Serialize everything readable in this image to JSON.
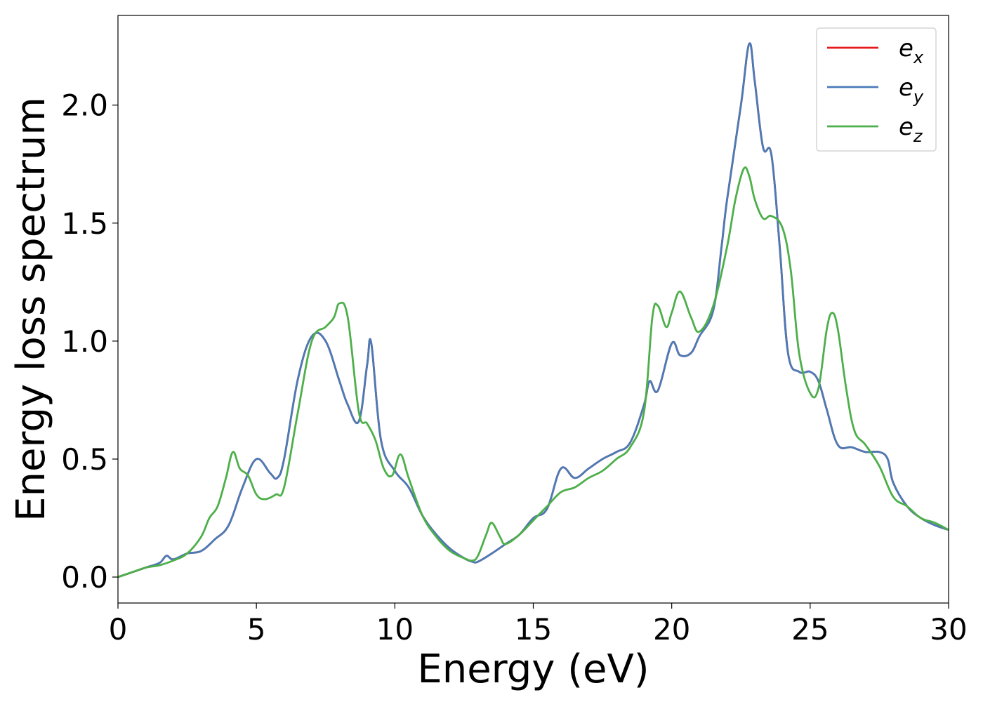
{
  "chart_data": {
    "type": "line",
    "xlabel": "Energy (eV)",
    "ylabel": "Energy loss spectrum",
    "xlim": [
      0,
      30
    ],
    "ylim": [
      -0.11,
      2.38
    ],
    "xticks": [
      0,
      5,
      10,
      15,
      20,
      25,
      30
    ],
    "yticks": [
      0.0,
      0.5,
      1.0,
      1.5,
      2.0
    ],
    "xtick_labels": [
      "0",
      "5",
      "10",
      "15",
      "20",
      "25",
      "30"
    ],
    "ytick_labels": [
      "0.0",
      "0.5",
      "1.0",
      "1.5",
      "2.0"
    ],
    "grid": false,
    "legend_position": "top-right",
    "series": [
      {
        "name": "e_x",
        "label_base": "e",
        "label_sub": "x",
        "color": "#e41a1c",
        "x": [
          0,
          0.5,
          1.0,
          1.5,
          1.75,
          2.0,
          2.5,
          3.0,
          3.5,
          4.0,
          4.5,
          5.0,
          5.5,
          5.75,
          6.0,
          6.5,
          7.0,
          7.5,
          8.0,
          8.3,
          8.7,
          9.0,
          9.15,
          9.5,
          10.0,
          10.5,
          11.0,
          11.5,
          12.0,
          12.5,
          12.8,
          13.0,
          13.5,
          14.0,
          14.5,
          15.0,
          15.5,
          16.0,
          16.5,
          17.0,
          17.5,
          18.0,
          18.5,
          19.0,
          19.2,
          19.5,
          20.0,
          20.3,
          20.7,
          21.0,
          21.5,
          21.8,
          22.0,
          22.5,
          22.8,
          23.0,
          23.3,
          23.6,
          23.9,
          24.2,
          24.6,
          25.0,
          25.3,
          25.6,
          26.0,
          26.5,
          27.0,
          27.5,
          27.8,
          28.0,
          28.5,
          29.0,
          29.5,
          30.0
        ],
        "y": [
          0.0,
          0.02,
          0.04,
          0.06,
          0.09,
          0.075,
          0.1,
          0.11,
          0.16,
          0.22,
          0.38,
          0.5,
          0.44,
          0.42,
          0.5,
          0.84,
          1.02,
          1.0,
          0.83,
          0.73,
          0.66,
          0.9,
          0.99,
          0.58,
          0.45,
          0.38,
          0.26,
          0.18,
          0.12,
          0.08,
          0.065,
          0.065,
          0.1,
          0.14,
          0.18,
          0.25,
          0.29,
          0.46,
          0.42,
          0.46,
          0.5,
          0.53,
          0.57,
          0.73,
          0.83,
          0.79,
          0.99,
          0.94,
          0.95,
          1.02,
          1.13,
          1.4,
          1.6,
          2.0,
          2.26,
          2.1,
          1.82,
          1.79,
          1.4,
          0.95,
          0.87,
          0.87,
          0.83,
          0.71,
          0.56,
          0.55,
          0.53,
          0.53,
          0.5,
          0.4,
          0.3,
          0.25,
          0.22,
          0.2
        ]
      },
      {
        "name": "e_y",
        "label_base": "e",
        "label_sub": "y",
        "color": "#4a7bb7",
        "x": [
          0,
          0.5,
          1.0,
          1.5,
          1.75,
          2.0,
          2.5,
          3.0,
          3.5,
          4.0,
          4.5,
          5.0,
          5.5,
          5.75,
          6.0,
          6.5,
          7.0,
          7.5,
          8.0,
          8.3,
          8.7,
          9.0,
          9.15,
          9.5,
          10.0,
          10.5,
          11.0,
          11.5,
          12.0,
          12.5,
          12.8,
          13.0,
          13.5,
          14.0,
          14.5,
          15.0,
          15.5,
          16.0,
          16.5,
          17.0,
          17.5,
          18.0,
          18.5,
          19.0,
          19.2,
          19.5,
          20.0,
          20.3,
          20.7,
          21.0,
          21.5,
          21.8,
          22.0,
          22.5,
          22.8,
          23.0,
          23.3,
          23.6,
          23.9,
          24.2,
          24.6,
          25.0,
          25.3,
          25.6,
          26.0,
          26.5,
          27.0,
          27.5,
          27.8,
          28.0,
          28.5,
          29.0,
          29.5,
          30.0
        ],
        "y": [
          0.0,
          0.02,
          0.04,
          0.06,
          0.09,
          0.075,
          0.1,
          0.11,
          0.16,
          0.22,
          0.38,
          0.5,
          0.44,
          0.42,
          0.5,
          0.84,
          1.02,
          1.0,
          0.83,
          0.73,
          0.66,
          0.9,
          0.99,
          0.58,
          0.45,
          0.38,
          0.26,
          0.18,
          0.12,
          0.08,
          0.065,
          0.065,
          0.1,
          0.14,
          0.18,
          0.25,
          0.29,
          0.46,
          0.42,
          0.46,
          0.5,
          0.53,
          0.57,
          0.73,
          0.83,
          0.79,
          0.99,
          0.94,
          0.95,
          1.02,
          1.13,
          1.4,
          1.6,
          2.0,
          2.26,
          2.1,
          1.82,
          1.79,
          1.4,
          0.95,
          0.87,
          0.87,
          0.83,
          0.71,
          0.56,
          0.55,
          0.53,
          0.53,
          0.5,
          0.4,
          0.3,
          0.25,
          0.22,
          0.2
        ]
      },
      {
        "name": "e_z",
        "label_base": "e",
        "label_sub": "z",
        "color": "#4daf4a",
        "x": [
          0,
          0.5,
          1.0,
          1.5,
          2.0,
          2.5,
          3.0,
          3.3,
          3.6,
          3.9,
          4.15,
          4.4,
          4.7,
          5.0,
          5.3,
          5.7,
          6.0,
          6.5,
          7.0,
          7.5,
          7.8,
          8.0,
          8.3,
          8.7,
          9.0,
          9.3,
          9.6,
          9.9,
          10.2,
          10.5,
          11.0,
          11.5,
          12.0,
          12.5,
          12.8,
          13.0,
          13.3,
          13.5,
          13.8,
          14.0,
          14.5,
          15.0,
          15.5,
          16.0,
          16.5,
          17.0,
          17.5,
          18.0,
          18.5,
          19.0,
          19.3,
          19.5,
          19.8,
          20.0,
          20.3,
          20.7,
          21.0,
          21.5,
          22.0,
          22.3,
          22.6,
          22.8,
          23.0,
          23.3,
          23.6,
          24.0,
          24.3,
          24.6,
          25.0,
          25.3,
          25.6,
          25.8,
          26.0,
          26.3,
          26.6,
          27.0,
          27.5,
          28.0,
          28.5,
          29.0,
          29.5,
          30.0
        ],
        "y": [
          0.0,
          0.02,
          0.04,
          0.05,
          0.07,
          0.1,
          0.17,
          0.25,
          0.3,
          0.42,
          0.53,
          0.46,
          0.43,
          0.35,
          0.33,
          0.35,
          0.38,
          0.7,
          1.0,
          1.06,
          1.1,
          1.16,
          1.1,
          0.7,
          0.65,
          0.58,
          0.46,
          0.43,
          0.52,
          0.42,
          0.26,
          0.17,
          0.11,
          0.08,
          0.07,
          0.09,
          0.18,
          0.23,
          0.17,
          0.14,
          0.18,
          0.24,
          0.3,
          0.36,
          0.38,
          0.42,
          0.45,
          0.5,
          0.55,
          0.7,
          1.1,
          1.15,
          1.06,
          1.12,
          1.21,
          1.1,
          1.04,
          1.15,
          1.4,
          1.6,
          1.73,
          1.7,
          1.6,
          1.52,
          1.53,
          1.48,
          1.3,
          0.95,
          0.78,
          0.8,
          1.05,
          1.12,
          1.05,
          0.8,
          0.62,
          0.56,
          0.47,
          0.34,
          0.3,
          0.25,
          0.23,
          0.2
        ]
      }
    ]
  }
}
